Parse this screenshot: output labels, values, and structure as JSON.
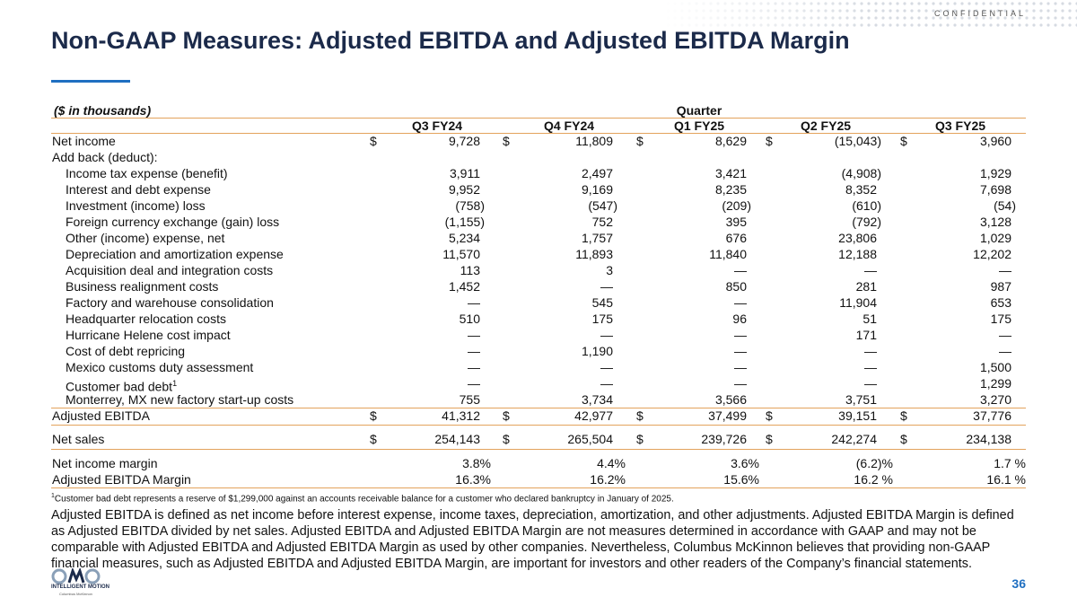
{
  "header": {
    "confidential": "CONFIDENTIAL",
    "title": "Non-GAAP Measures: Adjusted EBITDA and Adjusted EBITDA Margin"
  },
  "table": {
    "unit_label": "($ in thousands)",
    "group_header": "Quarter",
    "currency": "$",
    "columns": [
      "Q3 FY24",
      "Q4 FY24",
      "Q1 FY25",
      "Q2 FY25",
      "Q3 FY25"
    ],
    "rows": [
      {
        "label": "Net income",
        "currency": true,
        "cells": [
          "9,728",
          "11,809",
          "8,629",
          "(15,043)",
          "3,960"
        ]
      },
      {
        "label": "Add back (deduct):"
      },
      {
        "label": "Income tax expense (benefit)",
        "indent": true,
        "cells": [
          "3,911",
          "2,497",
          "3,421",
          "(4,908)",
          "1,929"
        ]
      },
      {
        "label": "Interest and debt expense",
        "indent": true,
        "cells": [
          "9,952",
          "9,169",
          "8,235",
          "8,352",
          "7,698"
        ]
      },
      {
        "label": "Investment (income) loss",
        "indent": true,
        "cells": [
          "(758)",
          "(547)",
          "(209)",
          "(610)",
          "(54)"
        ]
      },
      {
        "label": "Foreign currency exchange (gain) loss",
        "indent": true,
        "cells": [
          "(1,155)",
          "752",
          "395",
          "(792)",
          "3,128"
        ]
      },
      {
        "label": "Other (income) expense, net",
        "indent": true,
        "cells": [
          "5,234",
          "1,757",
          "676",
          "23,806",
          "1,029"
        ]
      },
      {
        "label": "Depreciation and amortization expense",
        "indent": true,
        "cells": [
          "11,570",
          "11,893",
          "11,840",
          "12,188",
          "12,202"
        ]
      },
      {
        "label": "Acquisition deal and integration costs",
        "indent": true,
        "cells": [
          "113",
          "3",
          "—",
          "—",
          "—"
        ]
      },
      {
        "label": "Business realignment costs",
        "indent": true,
        "cells": [
          "1,452",
          "—",
          "850",
          "281",
          "987"
        ]
      },
      {
        "label": "Factory and warehouse consolidation",
        "indent": true,
        "cells": [
          "—",
          "545",
          "—",
          "11,904",
          "653"
        ]
      },
      {
        "label": "Headquarter relocation costs",
        "indent": true,
        "cells": [
          "510",
          "175",
          "96",
          "51",
          "175"
        ]
      },
      {
        "label": "Hurricane Helene cost impact",
        "indent": true,
        "cells": [
          "—",
          "—",
          "—",
          "171",
          "—"
        ]
      },
      {
        "label": "Cost of debt repricing",
        "indent": true,
        "cells": [
          "—",
          "1,190",
          "—",
          "—",
          "—"
        ]
      },
      {
        "label": "Mexico customs duty assessment",
        "indent": true,
        "cells": [
          "—",
          "—",
          "—",
          "—",
          "1,500"
        ]
      },
      {
        "label": "Customer bad debt",
        "footnote_mark": "1",
        "indent": true,
        "cells": [
          "—",
          "—",
          "—",
          "—",
          "1,299"
        ]
      },
      {
        "label": "Monterrey, MX new factory start-up costs",
        "indent": true,
        "cells": [
          "755",
          "3,734",
          "3,566",
          "3,751",
          "3,270"
        ]
      },
      {
        "label": "Adjusted EBITDA",
        "currency": true,
        "cells": [
          "41,312",
          "42,977",
          "37,499",
          "39,151",
          "37,776"
        ]
      },
      {
        "label": "Net sales",
        "currency": true,
        "cells": [
          "254,143",
          "265,504",
          "239,726",
          "242,274",
          "234,138"
        ]
      },
      {
        "label": "Net income margin",
        "percent": true,
        "cells": [
          "3.8%",
          "4.4%",
          "3.6%",
          "(6.2)%",
          "1.7 %"
        ]
      },
      {
        "label": "Adjusted EBITDA Margin",
        "percent": true,
        "cells": [
          "16.3%",
          "16.2%",
          "15.6%",
          "16.2 %",
          "16.1 %"
        ]
      }
    ]
  },
  "footnote": {
    "mark": "1",
    "text": "Customer bad debt represents a reserve of $1,299,000 against an accounts receivable balance for a customer who declared bankruptcy in January of 2025."
  },
  "definition": "Adjusted EBITDA is defined as net income before interest expense, income taxes, depreciation, amortization, and other adjustments.  Adjusted EBITDA Margin is defined as Adjusted EBITDA divided by net sales.  Adjusted EBITDA and Adjusted EBITDA Margin are not measures determined in accordance with GAAP and may not be comparable with Adjusted EBITDA and Adjusted EBITDA Margin as used by other companies.  Nevertheless, Columbus McKinnon believes that providing non-GAAP financial measures, such as Adjusted EBITDA and Adjusted EBITDA Margin, are important for investors and other readers of the Company’s financial statements.",
  "logo": {
    "tagline": "INTELLIGENT MOTION",
    "company": "Columbus McKinnon"
  },
  "page_number": "36"
}
